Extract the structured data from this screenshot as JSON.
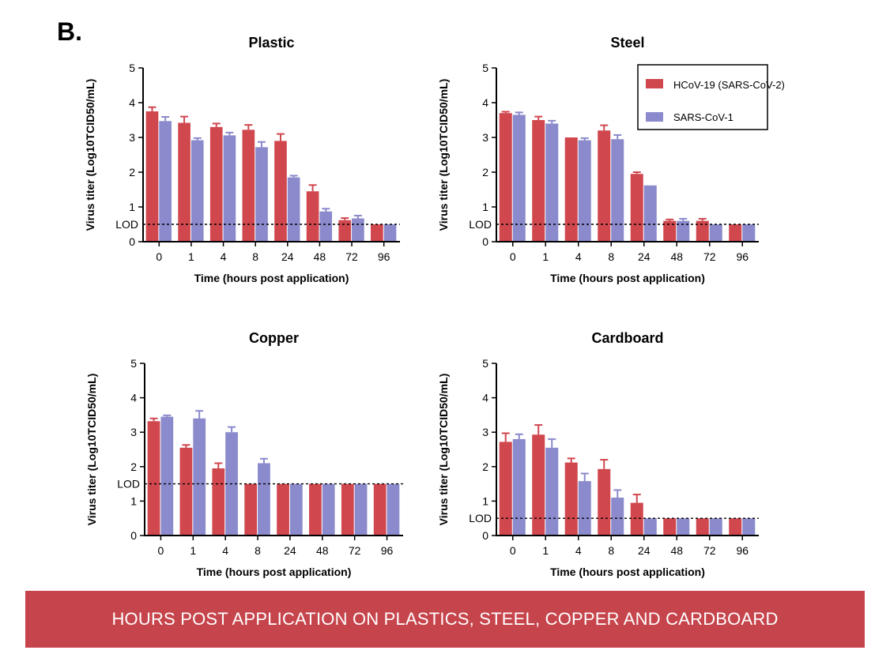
{
  "panel_label": "B.",
  "banner": "HOURS POST APPLICATION ON PLASTICS, STEEL, COPPER AND CARDBOARD",
  "colors": {
    "hcov19": "#d0474e",
    "sars1": "#8a8acd",
    "banner": "#c6444b"
  },
  "legend": [
    "HCoV-19 (SARS-CoV-2)",
    "SARS-CoV-1"
  ],
  "chart_data": [
    {
      "type": "bar",
      "title": "Plastic",
      "xlabel": "Time (hours post application)",
      "ylabel": "Virus titer (Log10TCID50/mL)",
      "ylim": [
        0,
        5
      ],
      "yticks": [
        0,
        1,
        2,
        3,
        4,
        5
      ],
      "lod_label": "LOD",
      "lod": 0.5,
      "categories": [
        "0",
        "1",
        "4",
        "8",
        "24",
        "48",
        "72",
        "96"
      ],
      "series": [
        {
          "name": "HCoV-19 (SARS-CoV-2)",
          "values": [
            3.75,
            3.42,
            3.3,
            3.22,
            2.9,
            1.45,
            0.62,
            0.5
          ],
          "errors": [
            0.12,
            0.18,
            0.1,
            0.14,
            0.2,
            0.18,
            0.06,
            0
          ]
        },
        {
          "name": "SARS-CoV-1",
          "values": [
            3.47,
            2.92,
            3.06,
            2.72,
            1.85,
            0.87,
            0.67,
            0.5
          ],
          "errors": [
            0.12,
            0.06,
            0.08,
            0.15,
            0.05,
            0.08,
            0.08,
            0
          ]
        }
      ]
    },
    {
      "type": "bar",
      "title": "Steel",
      "xlabel": "Time (hours post application)",
      "ylabel": "Virus titer (Log10TCID50/mL)",
      "ylim": [
        0,
        5
      ],
      "yticks": [
        0,
        1,
        2,
        3,
        4,
        5
      ],
      "lod_label": "LOD",
      "lod": 0.5,
      "categories": [
        "0",
        "1",
        "4",
        "8",
        "24",
        "48",
        "72",
        "96"
      ],
      "series": [
        {
          "name": "HCoV-19 (SARS-CoV-2)",
          "values": [
            3.7,
            3.5,
            3.0,
            3.2,
            1.95,
            0.6,
            0.6,
            0.5
          ],
          "errors": [
            0.04,
            0.1,
            0,
            0.15,
            0.05,
            0.04,
            0.06,
            0
          ]
        },
        {
          "name": "SARS-CoV-1",
          "values": [
            3.65,
            3.4,
            2.92,
            2.95,
            1.62,
            0.6,
            0.5,
            0.5
          ],
          "errors": [
            0.07,
            0.08,
            0.06,
            0.12,
            0,
            0.06,
            0,
            0
          ]
        }
      ]
    },
    {
      "type": "bar",
      "title": "Copper",
      "xlabel": "Time (hours post application)",
      "ylabel": "Virus titer (Log10TCID50/mL)",
      "ylim": [
        0,
        5
      ],
      "yticks": [
        0,
        1,
        2,
        3,
        4,
        5
      ],
      "lod_label": "LOD",
      "lod": 1.5,
      "categories": [
        "0",
        "1",
        "4",
        "8",
        "24",
        "48",
        "72",
        "96"
      ],
      "series": [
        {
          "name": "HCoV-19 (SARS-CoV-2)",
          "values": [
            3.32,
            2.55,
            1.95,
            1.5,
            1.5,
            1.5,
            1.5,
            1.5
          ],
          "errors": [
            0.08,
            0.08,
            0.15,
            0,
            0,
            0,
            0,
            0
          ]
        },
        {
          "name": "SARS-CoV-1",
          "values": [
            3.45,
            3.4,
            3.0,
            2.1,
            1.5,
            1.5,
            1.5,
            1.5
          ],
          "errors": [
            0.04,
            0.22,
            0.15,
            0.13,
            0,
            0,
            0,
            0
          ]
        }
      ]
    },
    {
      "type": "bar",
      "title": "Cardboard",
      "xlabel": "Time (hours post application)",
      "ylabel": "Virus titer (Log10TCID50/mL)",
      "ylim": [
        0,
        5
      ],
      "yticks": [
        0,
        1,
        2,
        3,
        4,
        5
      ],
      "lod_label": "LOD",
      "lod": 0.5,
      "categories": [
        "0",
        "1",
        "4",
        "8",
        "24",
        "48",
        "72",
        "96"
      ],
      "series": [
        {
          "name": "HCoV-19 (SARS-CoV-2)",
          "values": [
            2.72,
            2.93,
            2.12,
            1.93,
            0.95,
            0.5,
            0.5,
            0.5
          ],
          "errors": [
            0.25,
            0.28,
            0.12,
            0.27,
            0.24,
            0,
            0,
            0
          ]
        },
        {
          "name": "SARS-CoV-1",
          "values": [
            2.8,
            2.55,
            1.58,
            1.1,
            0.5,
            0.5,
            0.5,
            0.5
          ],
          "errors": [
            0.14,
            0.25,
            0.22,
            0.22,
            0,
            0,
            0,
            0
          ]
        }
      ]
    }
  ]
}
